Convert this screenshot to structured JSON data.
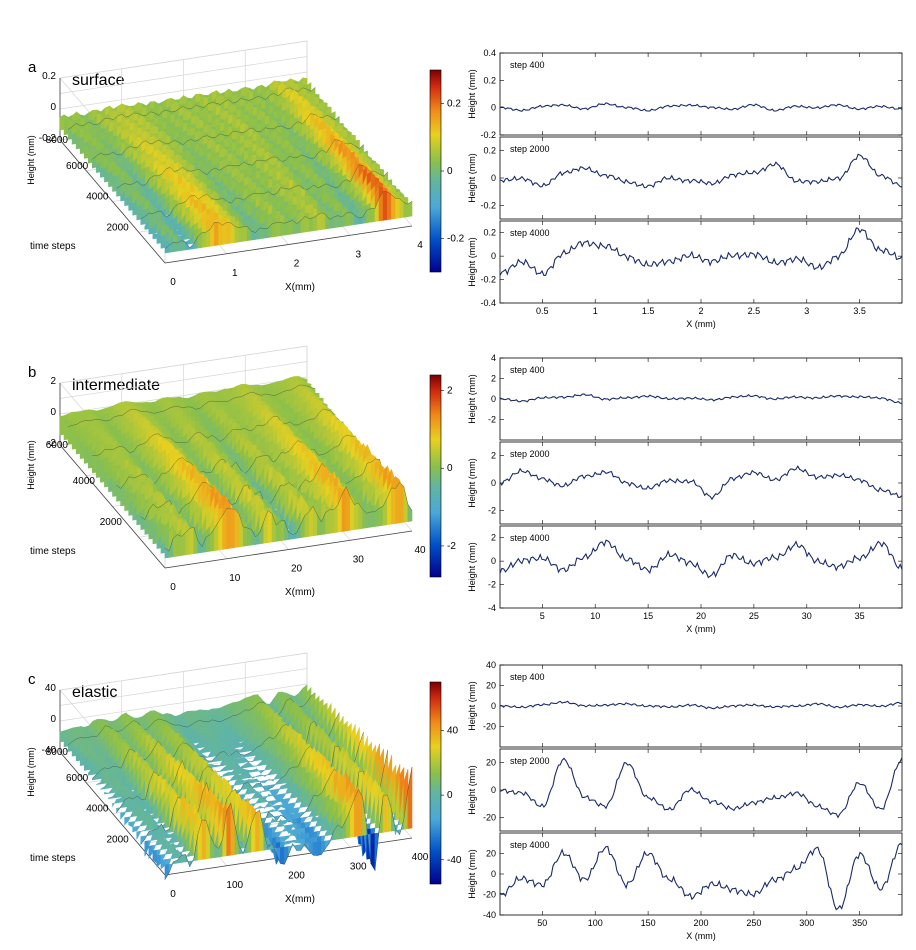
{
  "chart_data": [
    {
      "id": "a",
      "panel_label": "a",
      "type": "surface",
      "title": "surface",
      "zlabel": "Height (mm)",
      "ylabel": "time steps",
      "xlabel": "X(mm)",
      "z_ticks": [
        "0.2",
        "0",
        "-0.2"
      ],
      "y_ticks": [
        "8000",
        "6000",
        "4000",
        "2000"
      ],
      "x_ticks": [
        "0",
        "1",
        "2",
        "3",
        "4"
      ],
      "colorbar": {
        "ticks": [
          "0.2",
          "0",
          "-0.2"
        ],
        "range": [
          -0.3,
          0.3
        ]
      },
      "profiles": {
        "type": "line",
        "xlabel": "X (mm)",
        "ylabel": "Height (mm)",
        "xlim": [
          0.1,
          3.9
        ],
        "x_ticks": [
          "0.5",
          "1",
          "1.5",
          "2",
          "2.5",
          "3",
          "3.5"
        ],
        "subplots": [
          {
            "label": "step 400",
            "ylim": [
              -0.2,
              0.4
            ],
            "y_ticks": [
              "0.4",
              "0.2",
              "0",
              "-0.2"
            ],
            "x": [
              0.1,
              0.3,
              0.5,
              0.7,
              0.9,
              1.1,
              1.3,
              1.5,
              1.7,
              1.9,
              2.1,
              2.3,
              2.5,
              2.7,
              2.9,
              3.1,
              3.3,
              3.5,
              3.7,
              3.9
            ],
            "y": [
              0.0,
              -0.02,
              0.01,
              0.02,
              -0.01,
              0.03,
              0.0,
              -0.02,
              0.01,
              0.02,
              0.0,
              -0.01,
              0.02,
              -0.02,
              0.01,
              0.0,
              0.02,
              -0.01,
              0.01,
              -0.01
            ]
          },
          {
            "label": "step 2000",
            "ylim": [
              -0.3,
              0.3
            ],
            "y_ticks": [
              "0.2",
              "0",
              "-0.2"
            ],
            "x": [
              0.1,
              0.3,
              0.5,
              0.7,
              0.9,
              1.1,
              1.3,
              1.5,
              1.7,
              1.9,
              2.1,
              2.3,
              2.5,
              2.7,
              2.9,
              3.1,
              3.3,
              3.5,
              3.7,
              3.9
            ],
            "y": [
              -0.02,
              0.0,
              -0.06,
              0.04,
              0.07,
              0.02,
              -0.03,
              -0.06,
              0.0,
              -0.02,
              -0.04,
              0.02,
              0.04,
              0.1,
              -0.02,
              -0.03,
              0.0,
              0.16,
              0.02,
              -0.06
            ]
          },
          {
            "label": "step 4000",
            "ylim": [
              -0.4,
              0.3
            ],
            "y_ticks": [
              "0.2",
              "0",
              "-0.2",
              "-0.4"
            ],
            "x": [
              0.1,
              0.3,
              0.5,
              0.7,
              0.9,
              1.1,
              1.3,
              1.5,
              1.7,
              1.9,
              2.1,
              2.3,
              2.5,
              2.7,
              2.9,
              3.1,
              3.3,
              3.5,
              3.7,
              3.9
            ],
            "y": [
              -0.14,
              -0.05,
              -0.15,
              0.02,
              0.12,
              0.08,
              0.0,
              -0.08,
              -0.04,
              0.0,
              -0.04,
              0.0,
              0.02,
              -0.06,
              -0.02,
              -0.1,
              0.0,
              0.23,
              0.05,
              -0.02
            ]
          }
        ]
      }
    },
    {
      "id": "b",
      "panel_label": "b",
      "type": "surface",
      "title": "intermediate",
      "zlabel": "Height (mm)",
      "ylabel": "time steps",
      "xlabel": "X(mm)",
      "z_ticks": [
        "2",
        "0",
        "-2"
      ],
      "y_ticks": [
        "6000",
        "4000",
        "2000"
      ],
      "x_ticks": [
        "0",
        "10",
        "20",
        "30",
        "40"
      ],
      "colorbar": {
        "ticks": [
          "2",
          "0",
          "-2"
        ],
        "range": [
          -2.8,
          2.4
        ]
      },
      "profiles": {
        "type": "line",
        "xlabel": "X (mm)",
        "ylabel": "Height (mm)",
        "xlim": [
          1,
          39
        ],
        "x_ticks": [
          "5",
          "10",
          "15",
          "20",
          "25",
          "30",
          "35"
        ],
        "subplots": [
          {
            "label": "step 400",
            "ylim": [
              -4,
              4
            ],
            "y_ticks": [
              "4",
              "2",
              "0",
              "-2"
            ],
            "x": [
              1,
              3,
              5,
              7,
              9,
              11,
              13,
              15,
              17,
              19,
              21,
              23,
              25,
              27,
              29,
              31,
              33,
              35,
              37,
              39
            ],
            "y": [
              0.0,
              -0.2,
              0.1,
              0.2,
              0.4,
              0.0,
              0.1,
              0.3,
              0.0,
              0.1,
              -0.1,
              0.2,
              0.3,
              0.0,
              0.2,
              0.1,
              0.3,
              0.2,
              0.1,
              -0.4
            ]
          },
          {
            "label": "step 2000",
            "ylim": [
              -3,
              3
            ],
            "y_ticks": [
              "2",
              "0",
              "-2"
            ],
            "x": [
              1,
              3,
              5,
              7,
              9,
              11,
              13,
              15,
              17,
              19,
              21,
              23,
              25,
              27,
              29,
              31,
              33,
              35,
              37,
              39
            ],
            "y": [
              0.0,
              0.9,
              0.3,
              -0.2,
              0.5,
              0.8,
              0.0,
              -0.4,
              0.2,
              0.1,
              -1.0,
              0.3,
              0.8,
              0.2,
              1.1,
              0.4,
              0.6,
              0.2,
              -0.5,
              -1.0
            ]
          },
          {
            "label": "step 4000",
            "ylim": [
              -4,
              3
            ],
            "y_ticks": [
              "2",
              "0",
              "-2",
              "-4"
            ],
            "x": [
              1,
              3,
              5,
              7,
              9,
              11,
              13,
              15,
              17,
              19,
              21,
              23,
              25,
              27,
              29,
              31,
              33,
              35,
              37,
              39
            ],
            "y": [
              -0.8,
              0.0,
              0.3,
              -0.8,
              0.4,
              1.6,
              0.2,
              -0.8,
              0.6,
              -0.2,
              -1.2,
              0.5,
              -0.2,
              0.3,
              1.4,
              0.0,
              -0.5,
              0.3,
              1.5,
              -0.6
            ]
          }
        ]
      }
    },
    {
      "id": "c",
      "panel_label": "c",
      "type": "surface",
      "title": "elastic",
      "zlabel": "Height (mm)",
      "ylabel": "time steps",
      "xlabel": "X(mm)",
      "z_ticks": [
        "40",
        "0",
        "-40"
      ],
      "y_ticks": [
        "8000",
        "6000",
        "4000",
        "2000"
      ],
      "x_ticks": [
        "0",
        "100",
        "200",
        "300",
        "400"
      ],
      "colorbar": {
        "ticks": [
          "40",
          "0",
          "-40"
        ],
        "range": [
          -55,
          70
        ]
      },
      "profiles": {
        "type": "line",
        "xlabel": "X (mm)",
        "ylabel": "Height (mm)",
        "xlim": [
          10,
          390
        ],
        "x_ticks": [
          "50",
          "100",
          "150",
          "200",
          "250",
          "300",
          "350"
        ],
        "subplots": [
          {
            "label": "step 400",
            "ylim": [
              -40,
              40
            ],
            "y_ticks": [
              "40",
              "20",
              "0",
              "-20"
            ],
            "x": [
              10,
              30,
              50,
              70,
              90,
              110,
              130,
              150,
              170,
              190,
              210,
              230,
              250,
              270,
              290,
              310,
              330,
              350,
              370,
              390
            ],
            "y": [
              0,
              -1,
              1,
              4,
              0,
              1,
              2,
              0,
              -1,
              1,
              -2,
              0,
              1,
              -1,
              0,
              2,
              -1,
              1,
              0,
              3
            ]
          },
          {
            "label": "step 2000",
            "ylim": [
              -30,
              30
            ],
            "y_ticks": [
              "20",
              "0",
              "-20"
            ],
            "x": [
              10,
              30,
              50,
              70,
              90,
              110,
              130,
              150,
              170,
              190,
              210,
              230,
              250,
              270,
              290,
              310,
              330,
              350,
              370,
              390
            ],
            "y": [
              0,
              -2,
              -12,
              22,
              -5,
              -12,
              20,
              -6,
              -14,
              0,
              -8,
              -14,
              -9,
              -6,
              -2,
              -12,
              -18,
              5,
              -14,
              22
            ]
          },
          {
            "label": "step 4000",
            "ylim": [
              -40,
              40
            ],
            "y_ticks": [
              "20",
              "0",
              "-20",
              "-40"
            ],
            "x": [
              10,
              30,
              50,
              70,
              90,
              110,
              130,
              150,
              170,
              190,
              210,
              230,
              250,
              270,
              290,
              310,
              330,
              350,
              370,
              390
            ],
            "y": [
              -20,
              -5,
              -10,
              20,
              -5,
              25,
              -10,
              20,
              -5,
              -22,
              -10,
              -15,
              -20,
              -5,
              5,
              25,
              -35,
              20,
              -15,
              30
            ]
          }
        ]
      }
    }
  ]
}
